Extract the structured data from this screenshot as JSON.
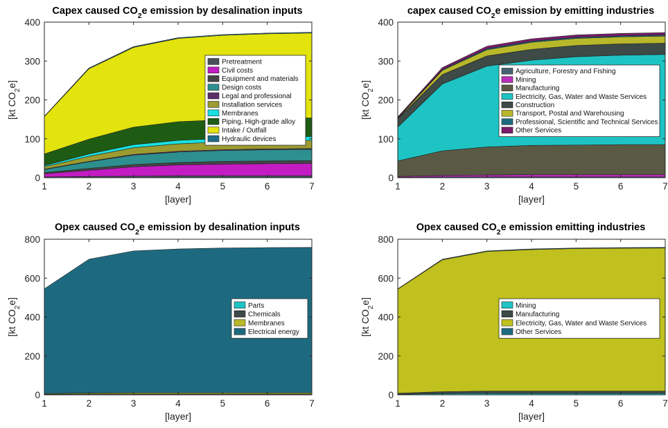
{
  "chart_data": [
    {
      "type": "area",
      "title": "Capex caused CO2e emission by desalination inputs",
      "xlabel": "[layer]",
      "ylabel": "[kt CO2e]",
      "x": [
        1,
        2,
        3,
        4,
        5,
        6,
        7
      ],
      "xlim": [
        1,
        7
      ],
      "ylim": [
        0,
        400
      ],
      "yticks": [
        0,
        100,
        200,
        300,
        400
      ],
      "grid": false,
      "legend_position": "right",
      "series": [
        {
          "name": "Pretreatment",
          "color": "#48505a",
          "values": [
            2,
            3,
            4,
            5,
            5,
            5,
            5
          ]
        },
        {
          "name": "Civil costs",
          "color": "#c21cc2",
          "values": [
            8,
            16,
            24,
            28,
            30,
            31,
            32
          ]
        },
        {
          "name": "Equipment and materials",
          "color": "#454545",
          "values": [
            3,
            5,
            6,
            6,
            7,
            7,
            7
          ]
        },
        {
          "name": "Design costs",
          "color": "#2e8f8f",
          "values": [
            8,
            17,
            24,
            27,
            28,
            29,
            29
          ]
        },
        {
          "name": "Legal and professional",
          "color": "#5a2e68",
          "values": [
            1,
            1,
            2,
            2,
            2,
            2,
            2
          ]
        },
        {
          "name": "Installation services",
          "color": "#9b9b30",
          "values": [
            6,
            13,
            17,
            19,
            20,
            20,
            21
          ]
        },
        {
          "name": "Membranes",
          "color": "#19e0e0",
          "values": [
            3,
            6,
            8,
            9,
            9,
            10,
            10
          ]
        },
        {
          "name": "Piping, High-grade alloy",
          "color": "#1e5c14",
          "values": [
            30,
            38,
            45,
            48,
            48,
            48,
            48
          ]
        },
        {
          "name": "Intake / Outfall",
          "color": "#e3e30d",
          "values": [
            96,
            181,
            205,
            214,
            217,
            218,
            218
          ]
        },
        {
          "name": "Hydraulic devices",
          "color": "#1f6d8a",
          "values": [
            1,
            2,
            2,
            2,
            2,
            2,
            2
          ]
        }
      ]
    },
    {
      "type": "area",
      "title": "capex caused CO2e emission by emitting industries",
      "xlabel": "[layer]",
      "ylabel": "[kt CO2e]",
      "x": [
        1,
        2,
        3,
        4,
        5,
        6,
        7
      ],
      "xlim": [
        1,
        7
      ],
      "ylim": [
        0,
        400
      ],
      "yticks": [
        0,
        100,
        200,
        300,
        400
      ],
      "grid": false,
      "legend_position": "right",
      "series": [
        {
          "name": "Agriculture, Forestry and Fishing",
          "color": "#466473",
          "values": [
            1,
            2,
            2,
            2,
            2,
            2,
            2
          ]
        },
        {
          "name": "Mining",
          "color": "#b82eb8",
          "values": [
            2,
            4,
            5,
            6,
            6,
            6,
            6
          ]
        },
        {
          "name": "Manufacturing",
          "color": "#5a5a44",
          "values": [
            40,
            63,
            72,
            75,
            76,
            77,
            77
          ]
        },
        {
          "name": "Electricity, Gas, Water and Waste Services",
          "color": "#1ec4c4",
          "values": [
            87,
            172,
            208,
            219,
            227,
            230,
            232
          ]
        },
        {
          "name": "Construction",
          "color": "#3d4a46",
          "values": [
            22,
            24,
            26,
            28,
            29,
            29,
            29
          ]
        },
        {
          "name": "Transport, Postal and Warehousing",
          "color": "#b8b82b",
          "values": [
            1,
            11,
            16,
            18,
            18,
            18,
            18
          ]
        },
        {
          "name": "Professional, Scientific and Technical Services",
          "color": "#1d6a80",
          "values": [
            1,
            2,
            3,
            3,
            3,
            3,
            3
          ]
        },
        {
          "name": "Other Services",
          "color": "#7a1c6a",
          "values": [
            2,
            5,
            6,
            6,
            6,
            6,
            6
          ]
        }
      ]
    },
    {
      "type": "area",
      "title": "Opex caused CO2e emission by desalination inputs",
      "xlabel": "[layer]",
      "ylabel": "[kt CO2e]",
      "x": [
        1,
        2,
        3,
        4,
        5,
        6,
        7
      ],
      "xlim": [
        1,
        7
      ],
      "ylim": [
        0,
        800
      ],
      "yticks": [
        0,
        200,
        400,
        600,
        800
      ],
      "grid": false,
      "legend_position": "right",
      "series": [
        {
          "name": "Parts",
          "color": "#1ec4c4",
          "values": [
            1,
            1,
            1,
            1,
            1,
            1,
            1
          ]
        },
        {
          "name": "Chemicals",
          "color": "#3d4a46",
          "values": [
            2,
            3,
            3,
            3,
            3,
            3,
            3
          ]
        },
        {
          "name": "Membranes",
          "color": "#b8b82b",
          "values": [
            3,
            5,
            6,
            6,
            6,
            6,
            6
          ]
        },
        {
          "name": "Electrical energy",
          "color": "#1d6a80",
          "values": [
            539,
            688,
            730,
            740,
            745,
            747,
            748
          ]
        }
      ]
    },
    {
      "type": "area",
      "title": "Opex caused CO2e emission emitting industries",
      "xlabel": "[layer]",
      "ylabel": "[kt CO2e]",
      "x": [
        1,
        2,
        3,
        4,
        5,
        6,
        7
      ],
      "xlim": [
        1,
        7
      ],
      "ylim": [
        0,
        800
      ],
      "yticks": [
        0,
        200,
        400,
        600,
        800
      ],
      "grid": false,
      "legend_position": "right",
      "series": [
        {
          "name": "Mining",
          "color": "#1ec4c4",
          "values": [
            3,
            6,
            7,
            7,
            7,
            7,
            7
          ]
        },
        {
          "name": "Manufacturing",
          "color": "#3d4a46",
          "values": [
            5,
            10,
            12,
            12,
            12,
            12,
            12
          ]
        },
        {
          "name": "Electricity, Gas, Water and Waste Services",
          "color": "#c0c01e",
          "values": [
            535,
            678,
            718,
            728,
            733,
            735,
            736
          ]
        },
        {
          "name": "Other Services",
          "color": "#1d6a80",
          "values": [
            2,
            3,
            3,
            3,
            3,
            3,
            3
          ]
        }
      ]
    }
  ]
}
